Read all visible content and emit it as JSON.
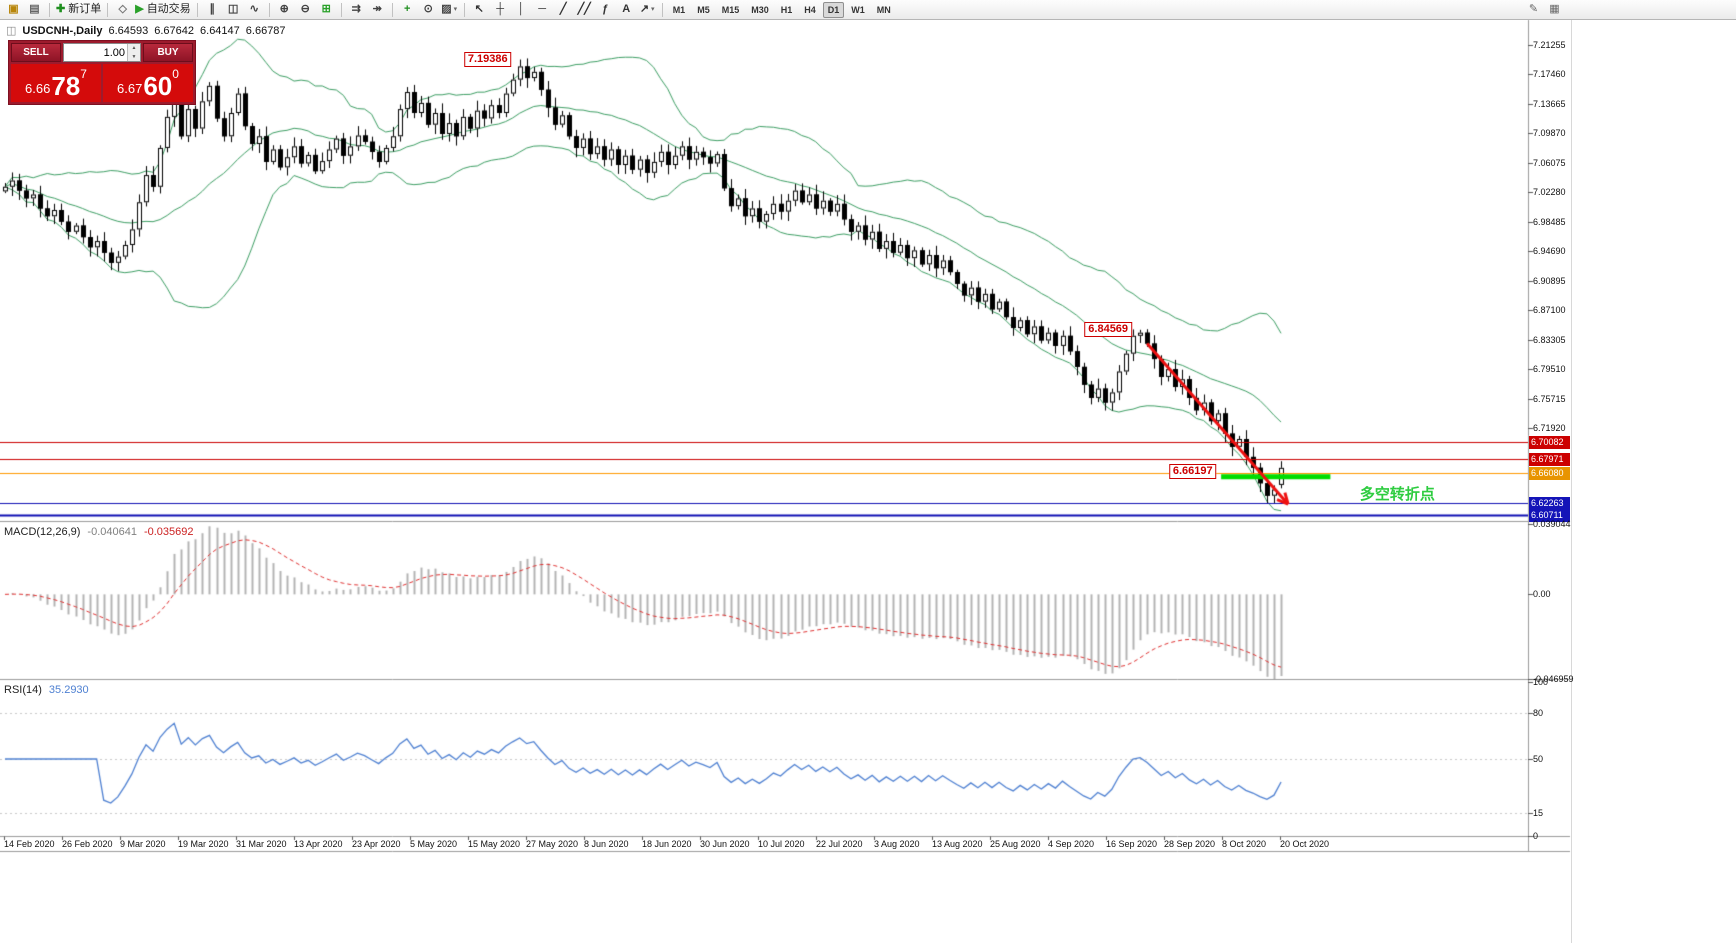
{
  "colors": {
    "bollinger": "#3c9e63",
    "macd_hist": "#b4b4b4",
    "macd_signal": "#e03030",
    "rsi_line": "#4f81d2",
    "candle_outline": "#000000",
    "candle_bull": "#ffffff",
    "candle_bear": "#000000"
  },
  "toolbar": {
    "groups": [
      {
        "items": [
          {
            "name": "new-chart",
            "glyph": "▣",
            "color": "#b8860b"
          },
          {
            "name": "profiles",
            "glyph": "▤",
            "color": "#666666"
          }
        ]
      },
      {
        "items": [
          {
            "name": "new-order",
            "glyph": "✚",
            "color": "#1f8f1f",
            "label": "新订单"
          }
        ]
      },
      {
        "items": [
          {
            "name": "metaeditor",
            "glyph": "◇",
            "color": "#777777"
          },
          {
            "name": "autotrading",
            "glyph": "▶",
            "color": "#2aa12a",
            "label": "自动交易"
          }
        ]
      },
      {
        "items": [
          {
            "name": "bar-chart-mode",
            "glyph": "∥",
            "color": "#444444"
          },
          {
            "name": "candlestick-mode",
            "glyph": "◫",
            "color": "#444444"
          },
          {
            "name": "line-chart-mode",
            "glyph": "∿",
            "color": "#444444"
          }
        ]
      },
      {
        "items": [
          {
            "name": "zoom-in",
            "glyph": "⊕",
            "color": "#444444"
          },
          {
            "name": "zoom-out",
            "glyph": "⊖",
            "color": "#444444"
          },
          {
            "name": "tile-windows",
            "glyph": "⊞",
            "color": "#2aa12a"
          }
        ]
      },
      {
        "items": [
          {
            "name": "auto-scroll",
            "glyph": "⇉",
            "color": "#444444"
          },
          {
            "name": "chart-shift",
            "glyph": "↠",
            "color": "#444444"
          }
        ]
      },
      {
        "items": [
          {
            "name": "indicators",
            "glyph": "+",
            "color": "#1f8f1f"
          },
          {
            "name": "periods",
            "glyph": "⊙",
            "color": "#444444"
          },
          {
            "name": "templates",
            "glyph": "▨",
            "color": "#444444",
            "dropdown": true
          }
        ]
      },
      {
        "items": [
          {
            "name": "cursor",
            "glyph": "↖",
            "color": "#333333"
          },
          {
            "name": "crosshair",
            "glyph": "┼",
            "color": "#333333"
          },
          {
            "name": "vertical-line",
            "glyph": "│",
            "color": "#333333"
          },
          {
            "name": "horizontal-line",
            "glyph": "─",
            "color": "#333333"
          },
          {
            "name": "trendline",
            "glyph": "╱",
            "color": "#333333"
          },
          {
            "name": "equidistant-channel",
            "glyph": "╱╱",
            "color": "#333333"
          },
          {
            "name": "fibonacci",
            "glyph": "ƒ",
            "color": "#333333"
          },
          {
            "name": "text-tool",
            "glyph": "A",
            "color": "#333333"
          },
          {
            "name": "arrows-tool",
            "glyph": "↗",
            "color": "#333333",
            "dropdown": true
          }
        ]
      }
    ],
    "timeframes": [
      "M1",
      "M5",
      "M15",
      "M30",
      "H1",
      "H4",
      "D1",
      "W1",
      "MN"
    ],
    "active_timeframe": "D1",
    "right_icons": [
      {
        "name": "quick-draw",
        "glyph": "✎",
        "color": "#666666"
      },
      {
        "name": "window-grid",
        "glyph": "▦",
        "color": "#666666"
      }
    ]
  },
  "symbol_info": {
    "icon": "◫",
    "symbol": "USDCNH-,Daily",
    "open": "6.64593",
    "high": "6.67642",
    "low": "6.64147",
    "close": "6.66787"
  },
  "trade_panel": {
    "sell_label": "SELL",
    "buy_label": "BUY",
    "volume": "1.00",
    "sell_price_small": "6.66",
    "sell_price_big": "78",
    "sell_price_sup": "7",
    "buy_price_small": "6.67",
    "buy_price_big": "60",
    "buy_price_sup": "0"
  },
  "chart_data": {
    "type": "candlestick",
    "symbol": "USDCNH",
    "timeframe": "Daily",
    "ylim": [
      6.5994,
      7.2448
    ],
    "yticks": [
      {
        "value": 7.21255,
        "text": "7.21255"
      },
      {
        "value": 7.1746,
        "text": "7.17460"
      },
      {
        "value": 7.13665,
        "text": "7.13665"
      },
      {
        "value": 7.0987,
        "text": "7.09870"
      },
      {
        "value": 7.06075,
        "text": "7.06075"
      },
      {
        "value": 7.0228,
        "text": "7.02280"
      },
      {
        "value": 6.98485,
        "text": "6.98485"
      },
      {
        "value": 6.9469,
        "text": "6.94690"
      },
      {
        "value": 6.90895,
        "text": "6.90895"
      },
      {
        "value": 6.871,
        "text": "6.87100"
      },
      {
        "value": 6.83305,
        "text": "6.83305"
      },
      {
        "value": 6.7951,
        "text": "6.79510"
      },
      {
        "value": 6.75715,
        "text": "6.75715"
      },
      {
        "value": 6.7192,
        "text": "6.71920"
      }
    ],
    "closes": [
      7.03,
      7.038,
      7.025,
      7.015,
      7.02,
      7.002,
      6.992,
      7.0,
      6.985,
      6.972,
      6.98,
      6.965,
      6.952,
      6.96,
      6.945,
      6.932,
      6.94,
      6.955,
      6.975,
      7.01,
      7.045,
      7.03,
      7.08,
      7.12,
      7.155,
      7.095,
      7.13,
      7.105,
      7.14,
      7.16,
      7.118,
      7.095,
      7.125,
      7.15,
      7.108,
      7.085,
      7.095,
      7.062,
      7.078,
      7.055,
      7.068,
      7.082,
      7.06,
      7.071,
      7.05,
      7.063,
      7.078,
      7.092,
      7.07,
      7.082,
      7.096,
      7.088,
      7.075,
      7.062,
      7.08,
      7.095,
      7.13,
      7.152,
      7.125,
      7.138,
      7.11,
      7.125,
      7.098,
      7.112,
      7.095,
      7.12,
      7.105,
      7.128,
      7.118,
      7.135,
      7.125,
      7.15,
      7.168,
      7.185,
      7.17,
      7.178,
      7.155,
      7.132,
      7.11,
      7.122,
      7.095,
      7.08,
      7.092,
      7.072,
      7.082,
      7.065,
      7.078,
      7.058,
      7.07,
      7.052,
      7.065,
      7.048,
      7.062,
      7.075,
      7.058,
      7.07,
      7.082,
      7.065,
      7.075,
      7.068,
      7.06,
      7.072,
      7.028,
      7.005,
      7.015,
      6.992,
      7.002,
      6.985,
      6.995,
      7.008,
      6.998,
      7.012,
      7.025,
      7.01,
      7.02,
      7.002,
      7.012,
      6.998,
      7.008,
      6.988,
      6.972,
      6.98,
      6.962,
      6.972,
      6.95,
      6.96,
      6.945,
      6.955,
      6.938,
      6.948,
      6.93,
      6.942,
      6.925,
      6.935,
      6.92,
      6.905,
      6.89,
      6.9,
      6.882,
      6.892,
      6.872,
      6.882,
      6.862,
      6.848,
      6.858,
      6.84,
      6.85,
      6.832,
      6.842,
      6.825,
      6.838,
      6.818,
      6.798,
      6.775,
      6.758,
      6.77,
      6.752,
      6.765,
      6.792,
      6.815,
      6.838,
      6.842,
      6.828,
      6.808,
      6.785,
      6.795,
      6.772,
      6.782,
      6.758,
      6.742,
      6.752,
      6.728,
      6.738,
      6.712,
      6.695,
      6.705,
      6.682,
      6.668,
      6.648,
      6.632,
      6.64,
      6.66787
    ],
    "overrides": {
      "0": {
        "open": 7.024
      },
      "73": {
        "high": 7.19386
      },
      "161": {
        "high": 6.84569
      },
      "180": {
        "low": 6.62263
      },
      "181": {
        "open": 6.64593,
        "high": 6.67642,
        "low": 6.64147,
        "close": 6.66787
      }
    },
    "bollinger": {
      "period": 20,
      "deviation": 2
    },
    "hlines": [
      {
        "price": 6.70082,
        "color": "#cc0000",
        "width": 1
      },
      {
        "price": 6.67971,
        "color": "#cc0000",
        "width": 1
      },
      {
        "price": 6.6608,
        "color": "#ff9900",
        "width": 1
      },
      {
        "price": 6.62263,
        "color": "#0f0fb4",
        "width": 1
      },
      {
        "price": 6.60711,
        "color": "#0f0fb4",
        "width": 2
      }
    ],
    "price_badges": [
      {
        "text": "6.70082",
        "value": 6.70082,
        "bg": "#cc0000"
      },
      {
        "text": "6.67971",
        "value": 6.67971,
        "bg": "#cc0000"
      },
      {
        "text": "6.66080",
        "value": 6.6608,
        "bg": "#e89400"
      },
      {
        "text": "6.62263",
        "value": 6.62263,
        "bg": "#1414b8"
      },
      {
        "text": "6.60711",
        "value": 6.60711,
        "bg": "#1414b8"
      }
    ],
    "callouts": [
      {
        "text": "7.19386",
        "price": 7.19386,
        "anchor_i": 73
      },
      {
        "text": "6.84569",
        "price": 6.84569,
        "anchor_i": 161
      },
      {
        "text": "6.66197",
        "price": 6.66197,
        "anchor_i": 173
      }
    ],
    "support_segment": {
      "from_i": 172.5,
      "to_i": 188,
      "price": 6.6565,
      "color": "#00dd00",
      "width": 5
    },
    "trend_arrow": {
      "from_i": 162,
      "from_price": 6.828,
      "to_i": 182,
      "to_price": 6.621,
      "color": "#ee1111",
      "width": 3
    },
    "annotation_text": {
      "text": "多空转折点",
      "i": 197.5,
      "price": 6.637,
      "color": "#2ecc40"
    },
    "x_labels": [
      "14 Feb 2020",
      "26 Feb 2020",
      "9 Mar 2020",
      "19 Mar 2020",
      "31 Mar 2020",
      "13 Apr 2020",
      "23 Apr 2020",
      "5 May 2020",
      "15 May 2020",
      "27 May 2020",
      "8 Jun 2020",
      "18 Jun 2020",
      "30 Jun 2020",
      "10 Jul 2020",
      "22 Jul 2020",
      "3 Aug 2020",
      "13 Aug 2020",
      "25 Aug 2020",
      "4 Sep 2020",
      "16 Sep 2020",
      "28 Sep 2020",
      "8 Oct 2020",
      "20 Oct 2020"
    ]
  },
  "macd": {
    "label": "MACD(12,26,9)",
    "value_main": "-0.040641",
    "value_signal": "-0.035692",
    "params": {
      "fast": 12,
      "slow": 26,
      "signal": 9
    },
    "range": [
      -0.046959,
      0.039044
    ],
    "axis_labels": [
      {
        "value": 0.039044,
        "text": "0.039044"
      },
      {
        "value": 0,
        "text": "0.00"
      },
      {
        "value": -0.046959,
        "text": "-0.046959"
      }
    ]
  },
  "rsi": {
    "label": "RSI(14)",
    "value": "35.2930",
    "period": 14,
    "levels": [
      80,
      50,
      15
    ],
    "axis_labels": [
      {
        "value": 100,
        "text": "100"
      },
      {
        "value": 80,
        "text": "80"
      },
      {
        "value": 50,
        "text": "50"
      },
      {
        "value": 15,
        "text": "15"
      },
      {
        "value": 0,
        "text": "0"
      }
    ]
  }
}
